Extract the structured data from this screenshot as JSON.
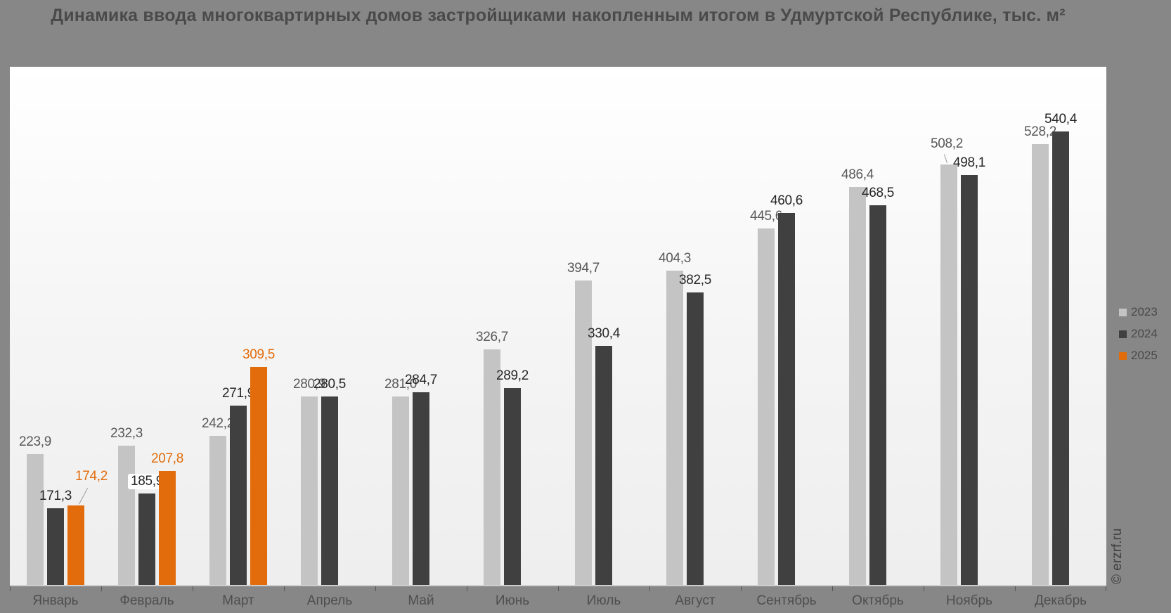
{
  "title": "Динамика ввода многоквартирных домов застройщиками накопленным итогом в Удмуртской Республике, тыс. м²",
  "watermark": "© erzrf.ru",
  "colors": {
    "page_background": "#878787",
    "plot_background": "#f4f4f4",
    "series_2023": "#c4c4c4",
    "series_2024": "#404040",
    "series_2025": "#e26c0c",
    "label_2023": "#595959",
    "label_2024": "#262626",
    "label_2025": "#e26c0c",
    "axis_label": "#4e4e4e"
  },
  "chart_data": {
    "type": "bar",
    "categories": [
      "Январь",
      "Февраль",
      "Март",
      "Апрель",
      "Май",
      "Июнь",
      "Июль",
      "Август",
      "Сентябрь",
      "Октябрь",
      "Ноябрь",
      "Декабрь"
    ],
    "series": [
      {
        "name": "2023",
        "color": "#c4c4c4",
        "label_color": "#595959",
        "values": [
          223.9,
          232.3,
          242.2,
          280.9,
          281.0,
          326.7,
          394.7,
          404.3,
          445.6,
          486.4,
          508.2,
          528.2
        ]
      },
      {
        "name": "2024",
        "color": "#404040",
        "label_color": "#262626",
        "values": [
          171.3,
          185.9,
          271.9,
          280.5,
          284.7,
          289.2,
          330.4,
          382.5,
          460.6,
          468.5,
          498.1,
          540.4
        ]
      },
      {
        "name": "2025",
        "color": "#e26c0c",
        "label_color": "#e26c0c",
        "values": [
          174.2,
          207.8,
          309.5,
          null,
          null,
          null,
          null,
          null,
          null,
          null,
          null,
          null
        ]
      }
    ],
    "title": "Динамика ввода многоквартирных домов застройщиками накопленным итогом в Удмуртской Республике, тыс. м²",
    "xlabel": "",
    "ylabel": "тыс. м²",
    "ylim": [
      96,
      604
    ],
    "grid": false,
    "legend_position": "right",
    "value_label_decimal_separator": ","
  }
}
